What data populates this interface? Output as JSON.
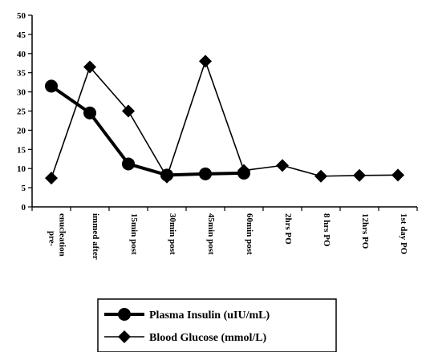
{
  "chart_data": {
    "type": "line",
    "title": "",
    "xlabel": "",
    "ylabel": "",
    "ylim": [
      0,
      50
    ],
    "yticks": [
      0,
      5,
      10,
      15,
      20,
      25,
      30,
      35,
      40,
      45,
      50
    ],
    "categories": [
      "pre-enucleation",
      "immed after",
      "15min post",
      "30min post",
      "45min post",
      "60min post",
      "2hrs PO",
      "8 hrs PO",
      "12hrs PO",
      "1st day PO"
    ],
    "category_lines": [
      [
        "pre-",
        "enucleation"
      ],
      [
        "immed after"
      ],
      [
        "15min post"
      ],
      [
        "30min post"
      ],
      [
        "45min post"
      ],
      [
        "60min post"
      ],
      [
        "2hrs PO"
      ],
      [
        "8 hrs PO"
      ],
      [
        "12hrs PO"
      ],
      [
        "1st day PO"
      ]
    ],
    "grid": false,
    "legend_position": "bottom-center",
    "series": [
      {
        "name": "Plasma Insulin (uIU/mL)",
        "marker": "circle",
        "color": "#000000",
        "values": [
          31.5,
          24.5,
          11.2,
          8.3,
          8.6,
          8.8,
          null,
          null,
          null,
          null
        ]
      },
      {
        "name": "Blood Glucose (mmol/L)",
        "marker": "diamond",
        "color": "#000000",
        "values": [
          7.5,
          36.5,
          25,
          7.8,
          38,
          9.5,
          10.8,
          8,
          8.2,
          8.3
        ]
      }
    ]
  }
}
